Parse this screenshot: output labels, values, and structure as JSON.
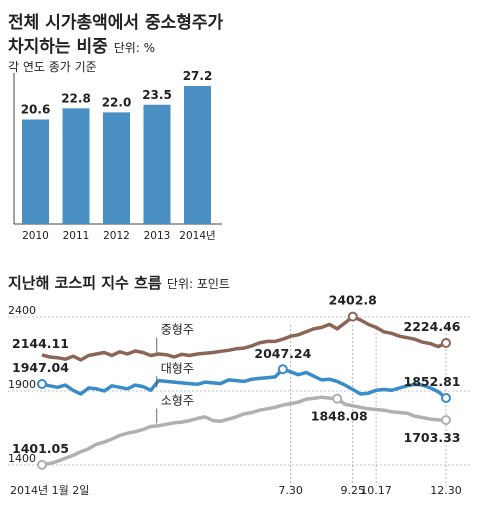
{
  "chart_data": [
    {
      "type": "bar",
      "title_line1": "전체 시가총액에서 중소형주가",
      "title_line2": "차지하는 비중",
      "unit": "단위: %",
      "subtitle": "각 연도 종가 기준",
      "categories": [
        "2010",
        "2011",
        "2012",
        "2013",
        "2014년"
      ],
      "values": [
        20.6,
        22.8,
        22.0,
        23.5,
        27.2
      ],
      "value_labels": [
        "20.6",
        "22.8",
        "22.0",
        "23.5",
        "27.2"
      ],
      "ylim": [
        0,
        27.2
      ],
      "color": "#4a90c4"
    },
    {
      "type": "line",
      "title": "지난해 코스피 지수 흐름",
      "unit": "단위: 포인트",
      "y_ticks": [
        {
          "value": 2400,
          "label": "2400"
        },
        {
          "value": 1900,
          "label": "1900"
        },
        {
          "value": 1400,
          "label": "1400"
        }
      ],
      "ylim": [
        1400,
        2400
      ],
      "x_ticks": [
        {
          "index": 0,
          "label": "2014년 1월 2일"
        },
        {
          "index": 32,
          "label": "7.30"
        },
        {
          "index": 40,
          "label": "9.25"
        },
        {
          "index": 43,
          "label": "10.17"
        },
        {
          "index": 52,
          "label": "12.30"
        }
      ],
      "series": [
        {
          "name": "중형주",
          "color": "#8b6656",
          "values": [
            2144.11,
            2130,
            2125,
            2115,
            2135,
            2110,
            2140,
            2150,
            2160,
            2140,
            2165,
            2150,
            2170,
            2160,
            2140,
            2150,
            2145,
            2130,
            2148,
            2140,
            2150,
            2155,
            2160,
            2168,
            2175,
            2185,
            2190,
            2205,
            2225,
            2235,
            2235,
            2250,
            2270,
            2280,
            2300,
            2320,
            2330,
            2350,
            2320,
            2360,
            2402.8,
            2380,
            2350,
            2330,
            2300,
            2290,
            2270,
            2260,
            2250,
            2230,
            2220,
            2200,
            2224.46
          ],
          "labels": [
            {
              "index": 0,
              "text": "2144.11",
              "marker": false
            },
            {
              "index": 40,
              "text": "2402.8",
              "marker": true
            },
            {
              "index": 52,
              "text": "2224.46",
              "marker": true
            }
          ]
        },
        {
          "name": "대형주",
          "color": "#3a8cc8",
          "values": [
            1947.04,
            1935,
            1925,
            1940,
            1905,
            1880,
            1920,
            1915,
            1900,
            1935,
            1925,
            1915,
            1940,
            1930,
            1905,
            1970,
            1965,
            1960,
            1955,
            1950,
            1945,
            1960,
            1955,
            1950,
            1975,
            1970,
            1965,
            1980,
            1985,
            1990,
            1995,
            2047.24,
            2030,
            2010,
            2025,
            2000,
            1975,
            1980,
            1965,
            1940,
            1910,
            1880,
            1885,
            1905,
            1910,
            1905,
            1920,
            1935,
            1945,
            1940,
            1920,
            1895,
            1852.81
          ],
          "labels": [
            {
              "index": 0,
              "text": "1947.04",
              "marker": true
            },
            {
              "index": 31,
              "text": "2047.24",
              "marker": true
            },
            {
              "index": 52,
              "text": "1852.81",
              "marker": true
            }
          ]
        },
        {
          "name": "소형주",
          "color": "#b0b0b0",
          "values": [
            1401.05,
            1410,
            1425,
            1445,
            1465,
            1490,
            1510,
            1540,
            1555,
            1575,
            1600,
            1615,
            1625,
            1640,
            1660,
            1665,
            1675,
            1685,
            1690,
            1700,
            1715,
            1725,
            1700,
            1695,
            1710,
            1725,
            1745,
            1755,
            1770,
            1780,
            1790,
            1805,
            1815,
            1825,
            1845,
            1850,
            1858,
            1852,
            1848.08,
            1810,
            1800,
            1790,
            1780,
            1775,
            1770,
            1760,
            1755,
            1750,
            1730,
            1720,
            1710,
            1705,
            1703.33
          ],
          "labels": [
            {
              "index": 0,
              "text": "1401.05",
              "marker": true
            },
            {
              "index": 38,
              "text": "1848.08",
              "marker": true
            },
            {
              "index": 52,
              "text": "1703.33",
              "marker": true
            }
          ]
        }
      ]
    }
  ]
}
